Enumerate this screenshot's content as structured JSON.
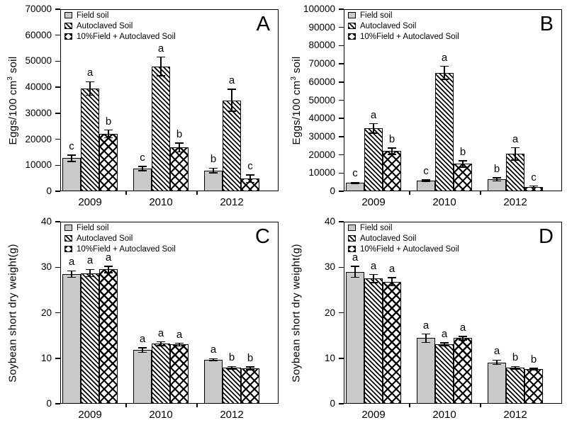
{
  "figure": {
    "background": "#ffffff",
    "ink_color": "#000000",
    "bar_gray": "#c9c9c9"
  },
  "legend": {
    "position": "top-left-inside",
    "items": [
      {
        "label": "Field soil",
        "pattern": "solid"
      },
      {
        "label": "Autoclaved Soil",
        "pattern": "hatch"
      },
      {
        "label": "10%Field + Autoclaved Soil",
        "pattern": "cross"
      }
    ]
  },
  "chart_data": [
    {
      "panel": "A",
      "type": "bar",
      "categories": [
        "2009",
        "2010",
        "2012"
      ],
      "ylabel": {
        "pre": "Eggs/100 cm",
        "sup": "3",
        "post": " soil"
      },
      "xlabel": "",
      "ylim": [
        0,
        70000
      ],
      "yticks": [
        0,
        10000,
        20000,
        30000,
        40000,
        50000,
        60000,
        70000
      ],
      "grid": false,
      "series": [
        {
          "name": "Field soil",
          "pattern": "solid",
          "values": [
            12700,
            8700,
            8000
          ],
          "errors": [
            1200,
            800,
            900
          ],
          "letters": [
            "c",
            "c",
            "b"
          ]
        },
        {
          "name": "Autoclaved Soil",
          "pattern": "hatch",
          "values": [
            39500,
            48000,
            35000
          ],
          "errors": [
            2600,
            3600,
            4200
          ],
          "letters": [
            "a",
            "a",
            "a"
          ]
        },
        {
          "name": "10%Field + Autoclaved Soil",
          "pattern": "cross",
          "values": [
            22000,
            16800,
            4800
          ],
          "errors": [
            1500,
            1700,
            1400
          ],
          "letters": [
            "b",
            "b",
            "c"
          ]
        }
      ]
    },
    {
      "panel": "B",
      "type": "bar",
      "categories": [
        "2009",
        "2010",
        "2012"
      ],
      "ylabel": {
        "pre": "Eggs/100 cm",
        "sup": "3",
        "post": " soil"
      },
      "xlabel": "",
      "ylim": [
        0,
        100000
      ],
      "yticks": [
        0,
        10000,
        20000,
        30000,
        40000,
        50000,
        60000,
        70000,
        80000,
        90000,
        100000
      ],
      "grid": false,
      "series": [
        {
          "name": "Field soil",
          "pattern": "solid",
          "values": [
            4500,
            5700,
            6500
          ],
          "errors": [
            400,
            500,
            900
          ],
          "letters": [
            "c",
            "c",
            "b"
          ]
        },
        {
          "name": "Autoclaved Soil",
          "pattern": "hatch",
          "values": [
            34500,
            65000,
            20500
          ],
          "errors": [
            2600,
            3600,
            3400
          ],
          "letters": [
            "a",
            "a",
            "a"
          ]
        },
        {
          "name": "10%Field + Autoclaved Soil",
          "pattern": "cross",
          "values": [
            22000,
            15000,
            2500
          ],
          "errors": [
            1700,
            1800,
            400
          ],
          "letters": [
            "b",
            "b",
            "c"
          ]
        }
      ]
    },
    {
      "panel": "C",
      "type": "bar",
      "categories": [
        "2009",
        "2010",
        "2012"
      ],
      "ylabel": {
        "pre": "Soybean short dry weight(g)",
        "sup": "",
        "post": ""
      },
      "xlabel": "",
      "ylim": [
        0,
        40
      ],
      "yticks": [
        0,
        10,
        20,
        30,
        40
      ],
      "grid": false,
      "series": [
        {
          "name": "Field soil",
          "pattern": "solid",
          "values": [
            28.5,
            11.8,
            9.7
          ],
          "errors": [
            0.7,
            0.5,
            0.2
          ],
          "letters": [
            "a",
            "a",
            "a"
          ]
        },
        {
          "name": "Autoclaved Soil",
          "pattern": "hatch",
          "values": [
            28.7,
            13.2,
            7.9
          ],
          "errors": [
            0.8,
            0.4,
            0.3
          ],
          "letters": [
            "a",
            "a",
            "b"
          ]
        },
        {
          "name": "10%Field + Autoclaved Soil",
          "pattern": "cross",
          "values": [
            29.5,
            13.0,
            7.8
          ],
          "errors": [
            0.7,
            0.3,
            0.3
          ],
          "letters": [
            "a",
            "a",
            "b"
          ]
        }
      ]
    },
    {
      "panel": "D",
      "type": "bar",
      "categories": [
        "2009",
        "2010",
        "2012"
      ],
      "ylabel": {
        "pre": "Soybean short dry weight(g)",
        "sup": "",
        "post": ""
      },
      "xlabel": "",
      "ylim": [
        0,
        40
      ],
      "yticks": [
        0,
        10,
        20,
        30,
        40
      ],
      "grid": false,
      "series": [
        {
          "name": "Field soil",
          "pattern": "solid",
          "values": [
            29.0,
            14.4,
            9.1
          ],
          "errors": [
            1.2,
            0.9,
            0.5
          ],
          "letters": [
            "a",
            "a",
            "a"
          ]
        },
        {
          "name": "Autoclaved Soil",
          "pattern": "hatch",
          "values": [
            27.5,
            13.1,
            7.9
          ],
          "errors": [
            0.9,
            0.3,
            0.3
          ],
          "letters": [
            "a",
            "a",
            "b"
          ]
        },
        {
          "name": "10%Field + Autoclaved Soil",
          "pattern": "cross",
          "values": [
            26.8,
            14.4,
            7.6
          ],
          "errors": [
            0.9,
            0.4,
            0.2
          ],
          "letters": [
            "a",
            "a",
            "b"
          ]
        }
      ]
    }
  ]
}
